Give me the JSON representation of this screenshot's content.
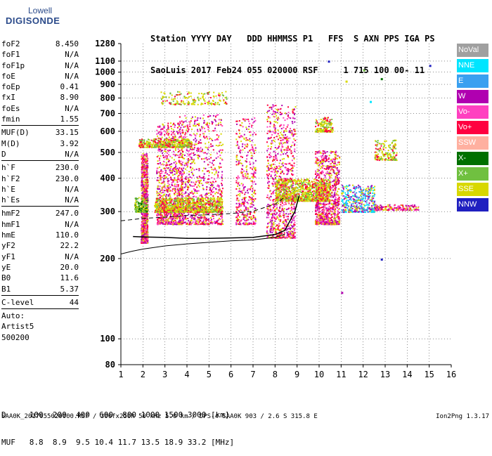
{
  "logo": {
    "line1": "Lowell",
    "line2": "DIGISONDE"
  },
  "header": {
    "line1": "Station YYYY DAY   DDD HHMMSS P1   FFS  S AXN PPS IGA PS",
    "line2": "SaoLuis 2017 Feb24 055 020000 RSF     1 715 100 00- 11"
  },
  "params": {
    "group1": [
      {
        "name": "foF2",
        "value": "8.450"
      },
      {
        "name": "foF1",
        "value": "N/A"
      },
      {
        "name": "foF1p",
        "value": "N/A"
      },
      {
        "name": "foE",
        "value": "N/A"
      },
      {
        "name": "foEp",
        "value": "0.41"
      },
      {
        "name": "fxI",
        "value": "8.90"
      },
      {
        "name": "foEs",
        "value": "N/A"
      },
      {
        "name": "fmin",
        "value": "1.55"
      }
    ],
    "group2": [
      {
        "name": "MUF(D)",
        "value": "33.15"
      },
      {
        "name": "M(D)",
        "value": "3.92"
      },
      {
        "name": "D",
        "value": "N/A"
      }
    ],
    "group3": [
      {
        "name": "h`F",
        "value": "230.0"
      },
      {
        "name": "h`F2",
        "value": "230.0"
      },
      {
        "name": "h`E",
        "value": "N/A"
      },
      {
        "name": "h`Es",
        "value": "N/A"
      }
    ],
    "group4": [
      {
        "name": "hmF2",
        "value": "247.0"
      },
      {
        "name": "hmF1",
        "value": "N/A"
      },
      {
        "name": "hmE",
        "value": "110.0"
      },
      {
        "name": "yF2",
        "value": "22.2"
      },
      {
        "name": "yF1",
        "value": "N/A"
      },
      {
        "name": "yE",
        "value": "20.0"
      },
      {
        "name": "B0",
        "value": "11.6"
      },
      {
        "name": "B1",
        "value": "5.37"
      }
    ],
    "group5": [
      {
        "name": "C-level",
        "value": "44"
      }
    ],
    "auto": [
      "Auto:",
      "Artist5",
      "500200"
    ]
  },
  "legend": [
    {
      "label": "NoVal",
      "color": "#a0a0a0"
    },
    {
      "label": "NNE",
      "color": "#00e5ff"
    },
    {
      "label": "E",
      "color": "#3aa0f0"
    },
    {
      "label": "W",
      "color": "#b000b0"
    },
    {
      "label": "Vo-",
      "color": "#ff40c0"
    },
    {
      "label": "Vo+",
      "color": "#ff0040"
    },
    {
      "label": "SSW",
      "color": "#ffb0a0"
    },
    {
      "label": "X-",
      "color": "#007000"
    },
    {
      "label": "X+",
      "color": "#70c040"
    },
    {
      "label": "SSE",
      "color": "#d8d800"
    },
    {
      "label": "NNW",
      "color": "#2020c0"
    }
  ],
  "muf_table": {
    "row1": "D     100  200  400  600  800 1000 1500 3000 [km]",
    "row2": "MUF   8.8  8.9  9.5 10.4 11.7 13.5 18.9 33.2 [MHz]"
  },
  "footer": {
    "left": "SAA0K_2017055020000.RSF / 300fx256h 50 kHz 5.0 km / DPS-4 SAA0K 903 / 2.6 S 315.8 E",
    "right": "Ion2Png 1.3.17"
  },
  "chart_data": {
    "type": "scatter",
    "xlim": [
      1,
      16
    ],
    "ylim": [
      80,
      1280
    ],
    "y_scale": "log",
    "x_ticks": [
      1,
      2,
      3,
      4,
      5,
      6,
      7,
      8,
      9,
      10,
      11,
      12,
      13,
      14,
      15,
      16
    ],
    "y_ticks": [
      80,
      100,
      200,
      300,
      400,
      500,
      600,
      700,
      800,
      900,
      1000,
      1100,
      1280
    ],
    "grid": true,
    "o_trace": [
      [
        1.55,
        242
      ],
      [
        2,
        241
      ],
      [
        3,
        240
      ],
      [
        4,
        238
      ],
      [
        5,
        238
      ],
      [
        6,
        239
      ],
      [
        7,
        240
      ],
      [
        8,
        246
      ],
      [
        8.45,
        255
      ],
      [
        8.9,
        300
      ],
      [
        9.1,
        345
      ]
    ],
    "profile": [
      [
        1,
        208
      ],
      [
        1.5,
        213
      ],
      [
        2,
        217
      ],
      [
        3,
        223
      ],
      [
        4,
        227
      ],
      [
        5,
        230
      ],
      [
        6,
        233
      ],
      [
        7,
        235
      ],
      [
        8,
        240
      ],
      [
        8.45,
        247
      ]
    ],
    "profile_dash": [
      [
        1,
        277
      ],
      [
        2,
        283
      ],
      [
        3,
        286
      ],
      [
        4,
        290
      ],
      [
        5,
        292
      ],
      [
        6,
        295
      ],
      [
        7,
        301
      ],
      [
        8,
        320
      ],
      [
        8.45,
        340
      ]
    ],
    "echo_clusters": [
      {
        "x": [
          1.9,
          2.2
        ],
        "y": [
          230,
          500
        ],
        "dir": "Vo+",
        "density": "high"
      },
      {
        "x": [
          2.6,
          3.8
        ],
        "y": [
          270,
          650
        ],
        "dir": "Vo+",
        "density": "high"
      },
      {
        "x": [
          3.6,
          5.6
        ],
        "y": [
          270,
          700
        ],
        "dir": "W",
        "density": "high"
      },
      {
        "x": [
          6.2,
          7.1
        ],
        "y": [
          270,
          680
        ],
        "dir": "Vo+",
        "density": "medium"
      },
      {
        "x": [
          7.6,
          8.9
        ],
        "y": [
          240,
          760
        ],
        "dir": "Vo+",
        "density": "high"
      },
      {
        "x": [
          9.8,
          10.9
        ],
        "y": [
          270,
          510
        ],
        "dir": "Vo+",
        "density": "high"
      },
      {
        "x": [
          2.5,
          5.6
        ],
        "y": [
          300,
          340
        ],
        "dir": "SSE",
        "density": "high"
      },
      {
        "x": [
          1.8,
          4.2
        ],
        "y": [
          525,
          565
        ],
        "dir": "SSE",
        "density": "medium"
      },
      {
        "x": [
          2.8,
          5.8
        ],
        "y": [
          760,
          850
        ],
        "dir": "SSE",
        "density": "low"
      },
      {
        "x": [
          8,
          10.5
        ],
        "y": [
          330,
          400
        ],
        "dir": "SSE",
        "density": "high"
      },
      {
        "x": [
          9.8,
          10.6
        ],
        "y": [
          600,
          680
        ],
        "dir": "SSE",
        "density": "low"
      },
      {
        "x": [
          11,
          12.5
        ],
        "y": [
          300,
          380
        ],
        "dir": "NNE",
        "density": "medium"
      },
      {
        "x": [
          12.5,
          14.5
        ],
        "y": [
          305,
          320
        ],
        "dir": "W",
        "density": "low"
      },
      {
        "x": [
          12.5,
          13.5
        ],
        "y": [
          470,
          560
        ],
        "dir": "SSE",
        "density": "low"
      },
      {
        "x": [
          1.6,
          2.2
        ],
        "y": [
          300,
          340
        ],
        "dir": "X+",
        "density": "low"
      }
    ],
    "isolated_points": [
      {
        "x": 15.0,
        "y": 1065,
        "dir": "NNW"
      },
      {
        "x": 12.0,
        "y": 1025,
        "dir": "X+"
      },
      {
        "x": 12.8,
        "y": 950,
        "dir": "X-"
      },
      {
        "x": 10.4,
        "y": 1105,
        "dir": "NNW"
      },
      {
        "x": 11.2,
        "y": 930,
        "dir": "SSE"
      },
      {
        "x": 11.0,
        "y": 150,
        "dir": "W"
      },
      {
        "x": 12.8,
        "y": 200,
        "dir": "NNW"
      },
      {
        "x": 12.3,
        "y": 780,
        "dir": "NNE"
      }
    ]
  }
}
